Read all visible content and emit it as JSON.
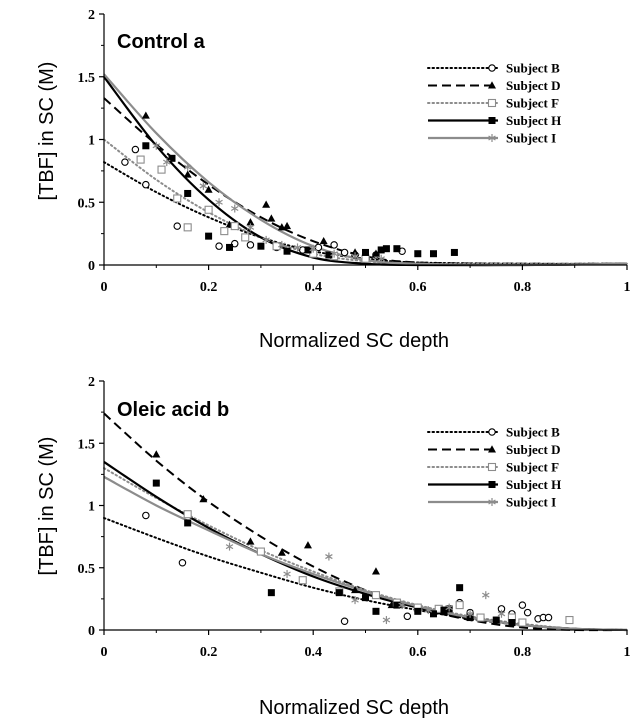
{
  "colors": {
    "black": "#000000",
    "gray": "#8c8c8c"
  },
  "chart_data": [
    {
      "type": "scatter",
      "title": "Control a",
      "xlabel": "Normalized SC depth",
      "ylabel": "[TBF] in SC (M)",
      "xlim": [
        0,
        1
      ],
      "ylim": [
        0,
        2
      ],
      "x_ticks": [
        "0",
        "0.2",
        "0.4",
        "0.6",
        "0.8",
        "1"
      ],
      "y_ticks": [
        "0",
        "0.5",
        "1",
        "1.5",
        "2"
      ],
      "grid": false,
      "legend_position": "top-right",
      "series": [
        {
          "name": "Subject B",
          "style": "dotted",
          "marker": "open-circle",
          "color": "#000000",
          "fit": [
            [
              0,
              0.82
            ],
            [
              0.1,
              0.58
            ],
            [
              0.2,
              0.38
            ],
            [
              0.3,
              0.22
            ],
            [
              0.4,
              0.11
            ],
            [
              0.5,
              0.05
            ],
            [
              0.6,
              0.02
            ],
            [
              0.8,
              0.01
            ],
            [
              1,
              0.01
            ]
          ],
          "points": [
            [
              0.04,
              0.82
            ],
            [
              0.06,
              0.92
            ],
            [
              0.08,
              0.64
            ],
            [
              0.14,
              0.31
            ],
            [
              0.22,
              0.15
            ],
            [
              0.25,
              0.17
            ],
            [
              0.28,
              0.16
            ],
            [
              0.33,
              0.14
            ],
            [
              0.38,
              0.12
            ],
            [
              0.41,
              0.14
            ],
            [
              0.44,
              0.16
            ],
            [
              0.46,
              0.1
            ],
            [
              0.48,
              0.08
            ],
            [
              0.52,
              0.08
            ],
            [
              0.57,
              0.11
            ]
          ]
        },
        {
          "name": "Subject D",
          "style": "dashed",
          "marker": "filled-triangle",
          "color": "#000000",
          "fit": [
            [
              0,
              1.33
            ],
            [
              0.1,
              0.96
            ],
            [
              0.2,
              0.64
            ],
            [
              0.3,
              0.38
            ],
            [
              0.4,
              0.19
            ],
            [
              0.5,
              0.07
            ],
            [
              0.6,
              0.02
            ],
            [
              0.8,
              0.01
            ],
            [
              1,
              0.01
            ]
          ],
          "points": [
            [
              0.08,
              1.19
            ],
            [
              0.16,
              0.72
            ],
            [
              0.2,
              0.6
            ],
            [
              0.24,
              0.32
            ],
            [
              0.28,
              0.34
            ],
            [
              0.31,
              0.48
            ],
            [
              0.32,
              0.37
            ],
            [
              0.34,
              0.3
            ],
            [
              0.35,
              0.31
            ],
            [
              0.42,
              0.19
            ],
            [
              0.48,
              0.1
            ],
            [
              0.52,
              0.09
            ]
          ]
        },
        {
          "name": "Subject F",
          "style": "dotted",
          "marker": "open-square",
          "color": "#8c8c8c",
          "fit": [
            [
              0,
              1.0
            ],
            [
              0.1,
              0.68
            ],
            [
              0.2,
              0.42
            ],
            [
              0.3,
              0.22
            ],
            [
              0.4,
              0.09
            ],
            [
              0.5,
              0.03
            ],
            [
              0.6,
              0.01
            ],
            [
              0.8,
              0.01
            ],
            [
              1,
              0.01
            ]
          ],
          "points": [
            [
              0.07,
              0.84
            ],
            [
              0.11,
              0.76
            ],
            [
              0.14,
              0.53
            ],
            [
              0.16,
              0.3
            ],
            [
              0.2,
              0.44
            ],
            [
              0.23,
              0.27
            ],
            [
              0.25,
              0.31
            ],
            [
              0.27,
              0.22
            ],
            [
              0.33,
              0.15
            ],
            [
              0.4,
              0.09
            ],
            [
              0.44,
              0.07
            ],
            [
              0.5,
              0.05
            ]
          ]
        },
        {
          "name": "Subject H",
          "style": "solid",
          "marker": "filled-square",
          "color": "#000000",
          "fit": [
            [
              0,
              1.5
            ],
            [
              0.1,
              0.95
            ],
            [
              0.2,
              0.52
            ],
            [
              0.3,
              0.22
            ],
            [
              0.4,
              0.06
            ],
            [
              0.5,
              0.01
            ],
            [
              0.6,
              0.0
            ],
            [
              0.8,
              0.0
            ],
            [
              1,
              0.01
            ]
          ],
          "points": [
            [
              0.08,
              0.95
            ],
            [
              0.13,
              0.85
            ],
            [
              0.16,
              0.57
            ],
            [
              0.2,
              0.23
            ],
            [
              0.24,
              0.14
            ],
            [
              0.3,
              0.15
            ],
            [
              0.35,
              0.11
            ],
            [
              0.39,
              0.12
            ],
            [
              0.43,
              0.08
            ],
            [
              0.5,
              0.1
            ],
            [
              0.53,
              0.12
            ],
            [
              0.54,
              0.13
            ],
            [
              0.56,
              0.13
            ],
            [
              0.6,
              0.09
            ],
            [
              0.63,
              0.09
            ],
            [
              0.67,
              0.1
            ]
          ]
        },
        {
          "name": "Subject I",
          "style": "solid",
          "marker": "asterisk",
          "color": "#8c8c8c",
          "fit": [
            [
              0,
              1.52
            ],
            [
              0.1,
              1.05
            ],
            [
              0.2,
              0.66
            ],
            [
              0.3,
              0.36
            ],
            [
              0.4,
              0.15
            ],
            [
              0.5,
              0.04
            ],
            [
              0.6,
              0.01
            ],
            [
              0.8,
              0.0
            ],
            [
              1,
              0.01
            ]
          ],
          "points": [
            [
              0.1,
              0.95
            ],
            [
              0.12,
              0.82
            ],
            [
              0.16,
              0.78
            ],
            [
              0.19,
              0.63
            ],
            [
              0.22,
              0.5
            ],
            [
              0.25,
              0.45
            ],
            [
              0.28,
              0.3
            ],
            [
              0.31,
              0.2
            ],
            [
              0.34,
              0.16
            ],
            [
              0.37,
              0.14
            ],
            [
              0.4,
              0.13
            ],
            [
              0.44,
              0.09
            ],
            [
              0.48,
              0.07
            ],
            [
              0.53,
              0.05
            ]
          ]
        }
      ]
    },
    {
      "type": "scatter",
      "title": "Oleic acid b",
      "xlabel": "Normalized SC depth",
      "ylabel": "[TBF] in SC (M)",
      "xlim": [
        0,
        1
      ],
      "ylim": [
        0,
        2
      ],
      "x_ticks": [
        "0",
        "0.2",
        "0.4",
        "0.6",
        "0.8",
        "1"
      ],
      "y_ticks": [
        "0",
        "0.5",
        "1",
        "1.5",
        "2"
      ],
      "grid": false,
      "legend_position": "top-right",
      "series": [
        {
          "name": "Subject B",
          "style": "dotted",
          "marker": "open-circle",
          "color": "#000000",
          "fit": [
            [
              0,
              0.9
            ],
            [
              0.1,
              0.74
            ],
            [
              0.2,
              0.59
            ],
            [
              0.3,
              0.46
            ],
            [
              0.4,
              0.34
            ],
            [
              0.5,
              0.24
            ],
            [
              0.6,
              0.16
            ],
            [
              0.7,
              0.09
            ],
            [
              0.8,
              0.04
            ],
            [
              0.9,
              0.01
            ],
            [
              1,
              0.0
            ]
          ],
          "points": [
            [
              0.08,
              0.92
            ],
            [
              0.15,
              0.54
            ],
            [
              0.46,
              0.07
            ],
            [
              0.58,
              0.11
            ],
            [
              0.64,
              0.16
            ],
            [
              0.68,
              0.22
            ],
            [
              0.7,
              0.14
            ],
            [
              0.76,
              0.17
            ],
            [
              0.78,
              0.13
            ],
            [
              0.8,
              0.2
            ],
            [
              0.81,
              0.14
            ],
            [
              0.83,
              0.09
            ],
            [
              0.84,
              0.1
            ],
            [
              0.85,
              0.1
            ]
          ]
        },
        {
          "name": "Subject D",
          "style": "dashed",
          "marker": "filled-triangle",
          "color": "#000000",
          "fit": [
            [
              0,
              1.74
            ],
            [
              0.1,
              1.36
            ],
            [
              0.2,
              1.03
            ],
            [
              0.3,
              0.75
            ],
            [
              0.4,
              0.51
            ],
            [
              0.5,
              0.32
            ],
            [
              0.6,
              0.18
            ],
            [
              0.7,
              0.08
            ],
            [
              0.8,
              0.02
            ],
            [
              0.9,
              0.0
            ],
            [
              1,
              0.0
            ]
          ],
          "points": [
            [
              0.1,
              1.41
            ],
            [
              0.19,
              1.05
            ],
            [
              0.28,
              0.71
            ],
            [
              0.34,
              0.62
            ],
            [
              0.39,
              0.68
            ],
            [
              0.48,
              0.32
            ],
            [
              0.52,
              0.47
            ],
            [
              0.55,
              0.2
            ],
            [
              0.6,
              0.18
            ],
            [
              0.65,
              0.15
            ]
          ]
        },
        {
          "name": "Subject F",
          "style": "dotted",
          "marker": "open-square",
          "color": "#8c8c8c",
          "fit": [
            [
              0,
              1.3
            ],
            [
              0.1,
              1.06
            ],
            [
              0.2,
              0.84
            ],
            [
              0.3,
              0.64
            ],
            [
              0.4,
              0.47
            ],
            [
              0.5,
              0.32
            ],
            [
              0.6,
              0.2
            ],
            [
              0.7,
              0.11
            ],
            [
              0.8,
              0.05
            ],
            [
              0.9,
              0.01
            ],
            [
              1,
              0.0
            ]
          ],
          "points": [
            [
              0.16,
              0.93
            ],
            [
              0.3,
              0.63
            ],
            [
              0.38,
              0.4
            ],
            [
              0.45,
              0.31
            ],
            [
              0.52,
              0.28
            ],
            [
              0.56,
              0.22
            ],
            [
              0.6,
              0.18
            ],
            [
              0.64,
              0.17
            ],
            [
              0.68,
              0.2
            ],
            [
              0.72,
              0.1
            ],
            [
              0.78,
              0.1
            ],
            [
              0.8,
              0.06
            ],
            [
              0.89,
              0.08
            ]
          ]
        },
        {
          "name": "Subject H",
          "style": "solid",
          "marker": "filled-square",
          "color": "#000000",
          "fit": [
            [
              0,
              1.35
            ],
            [
              0.1,
              1.07
            ],
            [
              0.2,
              0.82
            ],
            [
              0.3,
              0.61
            ],
            [
              0.4,
              0.43
            ],
            [
              0.5,
              0.29
            ],
            [
              0.6,
              0.18
            ],
            [
              0.7,
              0.1
            ],
            [
              0.8,
              0.04
            ],
            [
              0.9,
              0.01
            ],
            [
              1,
              0.0
            ]
          ],
          "points": [
            [
              0.1,
              1.18
            ],
            [
              0.16,
              0.86
            ],
            [
              0.32,
              0.3
            ],
            [
              0.45,
              0.3
            ],
            [
              0.5,
              0.26
            ],
            [
              0.52,
              0.15
            ],
            [
              0.56,
              0.2
            ],
            [
              0.6,
              0.15
            ],
            [
              0.63,
              0.13
            ],
            [
              0.65,
              0.16
            ],
            [
              0.66,
              0.17
            ],
            [
              0.68,
              0.34
            ],
            [
              0.7,
              0.1
            ],
            [
              0.75,
              0.08
            ],
            [
              0.78,
              0.06
            ]
          ]
        },
        {
          "name": "Subject I",
          "style": "solid",
          "marker": "asterisk",
          "color": "#8c8c8c",
          "fit": [
            [
              0,
              1.23
            ],
            [
              0.1,
              1.0
            ],
            [
              0.2,
              0.8
            ],
            [
              0.3,
              0.61
            ],
            [
              0.4,
              0.45
            ],
            [
              0.5,
              0.31
            ],
            [
              0.6,
              0.19
            ],
            [
              0.7,
              0.1
            ],
            [
              0.8,
              0.04
            ],
            [
              0.9,
              0.01
            ],
            [
              1,
              0.0
            ]
          ],
          "points": [
            [
              0.24,
              0.67
            ],
            [
              0.35,
              0.45
            ],
            [
              0.43,
              0.59
            ],
            [
              0.48,
              0.24
            ],
            [
              0.54,
              0.08
            ],
            [
              0.57,
              0.2
            ],
            [
              0.62,
              0.16
            ],
            [
              0.66,
              0.18
            ],
            [
              0.7,
              0.13
            ],
            [
              0.73,
              0.28
            ],
            [
              0.76,
              0.13
            ]
          ]
        }
      ]
    }
  ]
}
